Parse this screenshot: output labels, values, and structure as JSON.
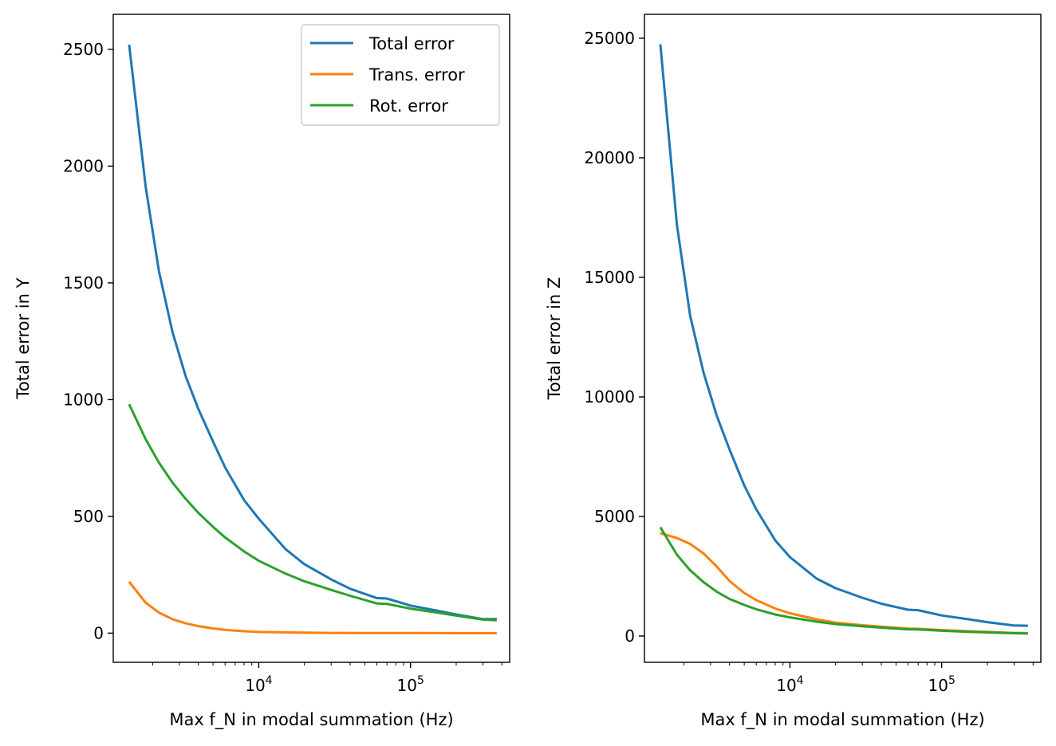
{
  "chart_data": [
    {
      "type": "line",
      "xscale": "log",
      "xlabel": "Max f_N in modal summation (Hz)",
      "ylabel": "Total error in Y",
      "xlim": [
        1100,
        450000
      ],
      "ylim": [
        -125,
        2650
      ],
      "x_ticks": [
        {
          "value": 10000,
          "base": "10",
          "exp": "4"
        },
        {
          "value": 100000,
          "base": "10",
          "exp": "5"
        }
      ],
      "y_ticks": [
        {
          "value": 0,
          "label": "0"
        },
        {
          "value": 500,
          "label": "500"
        },
        {
          "value": 1000,
          "label": "1000"
        },
        {
          "value": 1500,
          "label": "1500"
        },
        {
          "value": 2000,
          "label": "2000"
        },
        {
          "value": 2500,
          "label": "2500"
        }
      ],
      "grid": false,
      "legend": {
        "placement": "top-right",
        "entries": [
          "Total error",
          "Trans. error",
          "Rot. error"
        ]
      },
      "series": [
        {
          "name": "Total error",
          "color": "#1f77b4",
          "x": [
            1400,
            1800,
            2200,
            2700,
            3300,
            4000,
            5000,
            6000,
            8000,
            10000,
            15000,
            20000,
            30000,
            40000,
            60000,
            70000,
            100000,
            150000,
            200000,
            300000,
            370000
          ],
          "y": [
            2520,
            1910,
            1550,
            1290,
            1100,
            960,
            820,
            710,
            570,
            490,
            360,
            295,
            230,
            190,
            150,
            148,
            118,
            96,
            80,
            60,
            60
          ]
        },
        {
          "name": "Trans. error",
          "color": "#ff7f0e",
          "x": [
            1400,
            1800,
            2200,
            2700,
            3300,
            4000,
            5000,
            6000,
            8000,
            10000,
            15000,
            20000,
            30000,
            50000,
            100000,
            200000,
            370000
          ],
          "y": [
            220,
            130,
            88,
            60,
            42,
            30,
            20,
            14,
            8,
            5,
            3,
            2,
            1,
            0.5,
            0.3,
            0.1,
            0
          ]
        },
        {
          "name": "Rot. error",
          "color": "#2ca02c",
          "x": [
            1400,
            1800,
            2200,
            2700,
            3300,
            4000,
            5000,
            6000,
            8000,
            10000,
            15000,
            20000,
            30000,
            40000,
            60000,
            70000,
            100000,
            150000,
            200000,
            300000,
            370000
          ],
          "y": [
            980,
            830,
            730,
            645,
            575,
            515,
            455,
            410,
            350,
            310,
            255,
            222,
            185,
            160,
            127,
            125,
            105,
            88,
            75,
            58,
            55
          ]
        }
      ]
    },
    {
      "type": "line",
      "xscale": "log",
      "xlabel": "Max f_N in modal summation (Hz)",
      "ylabel": "Total error in Z",
      "xlim": [
        1100,
        450000
      ],
      "ylim": [
        -1100,
        26000
      ],
      "x_ticks": [
        {
          "value": 10000,
          "base": "10",
          "exp": "4"
        },
        {
          "value": 100000,
          "base": "10",
          "exp": "5"
        }
      ],
      "y_ticks": [
        {
          "value": 0,
          "label": "0"
        },
        {
          "value": 5000,
          "label": "5000"
        },
        {
          "value": 10000,
          "label": "10000"
        },
        {
          "value": 15000,
          "label": "15000"
        },
        {
          "value": 20000,
          "label": "20000"
        },
        {
          "value": 25000,
          "label": "25000"
        }
      ],
      "grid": false,
      "series": [
        {
          "name": "Total error",
          "color": "#1f77b4",
          "x": [
            1400,
            1800,
            2200,
            2700,
            3300,
            4000,
            5000,
            6000,
            8000,
            10000,
            15000,
            20000,
            30000,
            40000,
            60000,
            70000,
            100000,
            150000,
            200000,
            300000,
            370000
          ],
          "y": [
            24750,
            17200,
            13400,
            11000,
            9200,
            7800,
            6300,
            5300,
            4000,
            3300,
            2400,
            2000,
            1600,
            1350,
            1100,
            1080,
            860,
            700,
            580,
            440,
            430
          ]
        },
        {
          "name": "Trans. error",
          "color": "#ff7f0e",
          "x": [
            1400,
            1800,
            2200,
            2700,
            3300,
            4000,
            5000,
            6000,
            8000,
            10000,
            15000,
            20000,
            30000,
            40000,
            60000,
            70000,
            100000,
            150000,
            200000,
            300000,
            370000
          ],
          "y": [
            4300,
            4100,
            3850,
            3450,
            2900,
            2300,
            1800,
            1500,
            1150,
            950,
            700,
            560,
            450,
            390,
            310,
            300,
            250,
            200,
            170,
            130,
            120
          ]
        },
        {
          "name": "Rot. error",
          "color": "#2ca02c",
          "x": [
            1400,
            1800,
            2200,
            2700,
            3300,
            4000,
            5000,
            6000,
            8000,
            10000,
            15000,
            20000,
            30000,
            40000,
            60000,
            70000,
            100000,
            150000,
            200000,
            300000,
            370000
          ],
          "y": [
            4550,
            3400,
            2750,
            2250,
            1850,
            1550,
            1300,
            1120,
            900,
            780,
            600,
            500,
            410,
            350,
            280,
            275,
            220,
            175,
            150,
            115,
            105
          ]
        }
      ]
    }
  ]
}
